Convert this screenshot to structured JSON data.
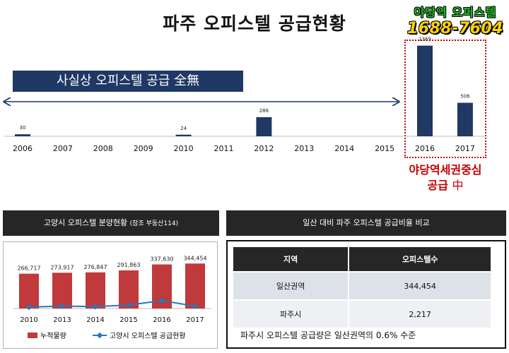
{
  "title": "파주 오피스텔 공급현황",
  "promo": {
    "name": "야당역 오피스텔",
    "phone": "1688-7604"
  },
  "banner": {
    "text": "사실상 오피스텔 공급",
    "emphasis": "全無"
  },
  "callout": {
    "line1": "야당역세권중심",
    "line2": "공급",
    "line2_emphasis": "中"
  },
  "colors": {
    "bar": "#1f3864",
    "red_bar": "#c0393b",
    "line": "#2e75b6",
    "accent": "#c00000"
  },
  "chart_data": [
    {
      "type": "bar",
      "title": "파주 오피스텔 공급현황",
      "categories": [
        "2006",
        "2007",
        "2008",
        "2009",
        "2010",
        "2011",
        "2012",
        "2013",
        "2014",
        "2015",
        "2016",
        "2017"
      ],
      "values": [
        30,
        null,
        null,
        null,
        24,
        null,
        288,
        null,
        null,
        null,
        1369,
        506
      ],
      "ylim": [
        0,
        1600
      ]
    },
    {
      "type": "bar",
      "title": "고양시 오피스텔 분양현황 (참조 부동산114)",
      "categories": [
        "2010",
        "2013",
        "2014",
        "2015",
        "2016",
        "2017"
      ],
      "series": [
        {
          "name": "누적물량",
          "type": "bar",
          "values": [
            266717,
            273917,
            276847,
            291863,
            337630,
            344454
          ],
          "labels": [
            "266,717",
            "273,917",
            "276,847",
            "291,863",
            "337,630",
            "344,454"
          ]
        },
        {
          "name": "고양시 오피스텔 공급현황",
          "type": "line",
          "values": [
            0,
            7200,
            2930,
            15016,
            45767,
            6824
          ]
        }
      ],
      "ylim": [
        0,
        400000
      ]
    }
  ],
  "left_panel": {
    "heading": "고양시 오피스텔 분양현황",
    "heading_note": "(참조 부동산114)"
  },
  "comparison": {
    "heading": "일산 대비  파주 오피스텔  공급비율 비교",
    "columns": [
      "지역",
      "오피스텔수"
    ],
    "rows": [
      [
        "일산권역",
        "344,454"
      ],
      [
        "파주시",
        "2,217"
      ]
    ],
    "note": "파주시 오피스텔 공급량은 일산권역의 0.6% 수준"
  }
}
